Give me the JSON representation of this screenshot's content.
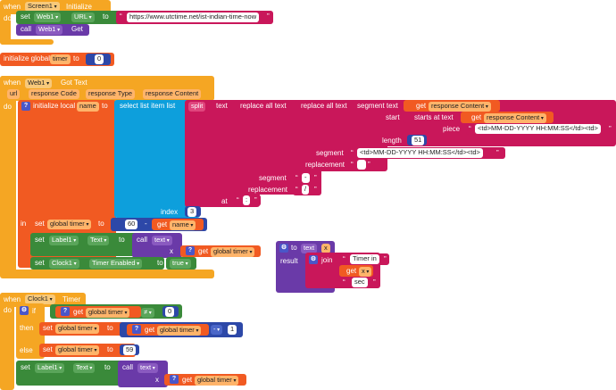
{
  "colors": {
    "event": "#f5a623",
    "procedure": "#6a3aa8",
    "list": "#0d9fdc",
    "text": "#c9175a",
    "variable": "#f15a22",
    "component": "#3a8a3a",
    "math": "#2d48a8"
  },
  "screen_init": {
    "when": "when",
    "component": "Screen1",
    "event": "Initialize",
    "do": "do",
    "set": "set",
    "web": "Web1",
    "prop": "URL",
    "to": "to",
    "url": "https://www.utctime.net/ist-indian-time-now",
    "call": "call",
    "web2": "Web1",
    "method": "Get"
  },
  "global_init": {
    "label": "initialize global",
    "name": "timer",
    "to": "to",
    "value": "0"
  },
  "got_text": {
    "when": "when",
    "component": "Web1",
    "event": "Got Text",
    "params": [
      "url",
      "response Code",
      "response Type",
      "response Content"
    ],
    "do": "do",
    "init_local": "initialize local",
    "local_name": "name",
    "to": "to",
    "select_list": "select list item  list",
    "split": "split",
    "text_label": "text",
    "replace_all_1": "replace all  text",
    "replace_all_2": "replace all  text",
    "segment_text": "segment  text",
    "get": "get",
    "response_content": "response Content",
    "start": "start",
    "starts_at": "starts at  text",
    "get2": "get",
    "response_content2": "response Content",
    "piece": "piece",
    "piece_value": "<td>MM-DD-YYYY HH:MM:SS</td><td>",
    "length": "length",
    "length_value": "51",
    "segment": "segment",
    "segment_value": "<td>MM-DD-YYYY HH:MM:SS</td><td>",
    "replacement": "replacement",
    "replacement_value": "",
    "segment2": "segment",
    "segment2_value": "-",
    "replacement2": "replacement",
    "replacement2_value": "/",
    "at": "at",
    "at_value": ":",
    "index": "index",
    "index_value": "3",
    "in": "in",
    "set1": "set",
    "global_timer": "global timer",
    "to1": "to",
    "sixty": "60",
    "minus": "-",
    "get3": "get",
    "name_var": "name",
    "set2": "set",
    "label1": "Label1",
    "text_prop": "Text",
    "to2": "to",
    "call": "call",
    "text_fn": "text",
    "x": "x",
    "get4": "get",
    "global_timer2": "global timer",
    "set3": "set",
    "clock1": "Clock1",
    "timer_enabled": "Timer Enabled",
    "to3": "to",
    "true": "true"
  },
  "procedure": {
    "to": "to",
    "name": "text",
    "param": "x",
    "result": "result",
    "join": "join",
    "s1": "Timer in",
    "get": "get",
    "var": "x",
    "s2": "sec"
  },
  "clock_timer": {
    "when": "when",
    "component": "Clock1",
    "event": "Timer",
    "do": "do",
    "if": "if",
    "get": "get",
    "global_timer": "global timer",
    "neq": "≠",
    "zero": "0",
    "then": "then",
    "set": "set",
    "global_timer2": "global timer",
    "to": "to",
    "get2": "get",
    "global_timer3": "global timer",
    "minus": "-",
    "one": "1",
    "else": "else",
    "set2": "set",
    "global_timer4": "global timer",
    "to2": "to",
    "fifty_nine": "59",
    "set3": "set",
    "label1": "Label1",
    "text_prop": "Text",
    "to3": "to",
    "call": "call",
    "text_fn": "text",
    "x": "x",
    "get3": "get",
    "global_timer5": "global timer"
  }
}
